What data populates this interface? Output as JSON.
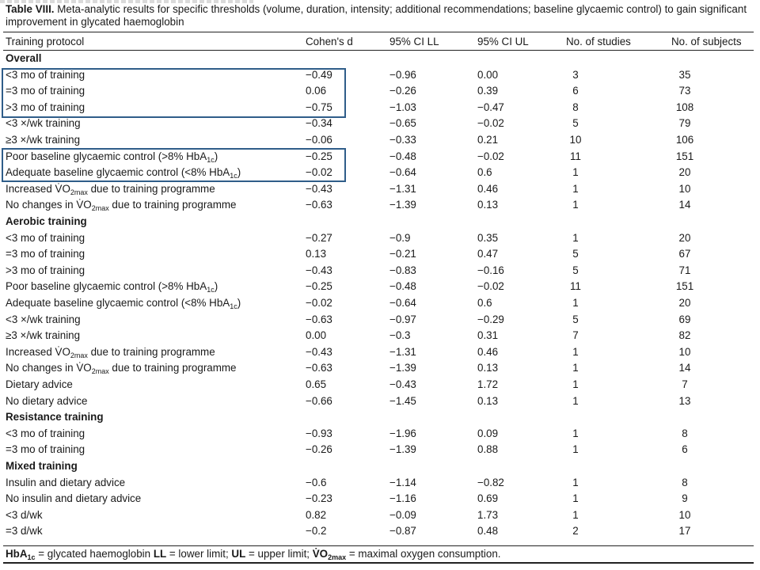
{
  "caption": {
    "label": "Table  VIII.",
    "text": " Meta-analytic results for specific thresholds (volume, duration, intensity; additional recommendations; baseline glycaemic control) to gain significant improvement in glycated haemoglobin"
  },
  "header": {
    "protocol": "Training protocol",
    "cohens_d": "Cohen's d",
    "ci_ll": "95% CI LL",
    "ci_ul": "95% CI UL",
    "n_studies": "No. of studies",
    "n_subjects": "No. of subjects"
  },
  "rows": [
    {
      "section": "Overall"
    },
    {
      "label": "<3 mo of training",
      "d": "−0.49",
      "ll": "−0.96",
      "ul": "0.00",
      "ns": "3",
      "nj": "35"
    },
    {
      "label": "=3 mo of training",
      "d": "0.06",
      "ll": "−0.26",
      "ul": "0.39",
      "ns": "6",
      "nj": "73"
    },
    {
      "label": ">3 mo of training",
      "d": "−0.75",
      "ll": "−1.03",
      "ul": "−0.47",
      "ns": "8",
      "nj": "108"
    },
    {
      "label": "<3 ×/wk training",
      "d": "−0.34",
      "ll": "−0.65",
      "ul": "−0.02",
      "ns": "5",
      "nj": "79"
    },
    {
      "label": "≥3 ×/wk training",
      "d": "−0.06",
      "ll": "−0.33",
      "ul": "0.21",
      "ns": "10",
      "nj": "106"
    },
    {
      "label_pre": "Poor baseline glycaemic control (>8% HbA",
      "label_sub": "1c",
      "label_post": ")",
      "d": "−0.25",
      "ll": "−0.48",
      "ul": "−0.02",
      "ns": "11",
      "nj": "151"
    },
    {
      "label_pre": "Adequate baseline glycaemic control (<8% HbA",
      "label_sub": "1c",
      "label_post": ")",
      "d": "−0.02",
      "ll": "−0.64",
      "ul": "0.6",
      "ns": "1",
      "nj": "20"
    },
    {
      "label_pre": "Increased V̇O",
      "label_sub": "2max",
      "label_post": " due to training programme",
      "d": "−0.43",
      "ll": "−1.31",
      "ul": "0.46",
      "ns": "1",
      "nj": "10"
    },
    {
      "label_pre": "No changes in V̇O",
      "label_sub": "2max",
      "label_post": " due to training programme",
      "d": "−0.63",
      "ll": "−1.39",
      "ul": "0.13",
      "ns": "1",
      "nj": "14"
    },
    {
      "section": "Aerobic training"
    },
    {
      "label": "<3 mo of training",
      "d": "−0.27",
      "ll": "−0.9",
      "ul": "0.35",
      "ns": "1",
      "nj": "20"
    },
    {
      "label": "=3 mo of training",
      "d": "0.13",
      "ll": "−0.21",
      "ul": "0.47",
      "ns": "5",
      "nj": "67"
    },
    {
      "label": ">3 mo of training",
      "d": "−0.43",
      "ll": "−0.83",
      "ul": "−0.16",
      "ns": "5",
      "nj": "71"
    },
    {
      "label_pre": "Poor baseline glycaemic control (>8% HbA",
      "label_sub": "1c",
      "label_post": ")",
      "d": "−0.25",
      "ll": "−0.48",
      "ul": "−0.02",
      "ns": "11",
      "nj": "151"
    },
    {
      "label_pre": "Adequate baseline glycaemic control (<8% HbA",
      "label_sub": "1c",
      "label_post": ")",
      "d": "−0.02",
      "ll": "−0.64",
      "ul": "0.6",
      "ns": "1",
      "nj": "20"
    },
    {
      "label": "<3 ×/wk training",
      "d": "−0.63",
      "ll": "−0.97",
      "ul": "−0.29",
      "ns": "5",
      "nj": "69"
    },
    {
      "label": "≥3 ×/wk training",
      "d": "0.00",
      "ll": "−0.3",
      "ul": "0.31",
      "ns": "7",
      "nj": "82"
    },
    {
      "label_pre": "Increased V̇O",
      "label_sub": "2max",
      "label_post": " due to training programme",
      "d": "−0.43",
      "ll": "−1.31",
      "ul": "0.46",
      "ns": "1",
      "nj": "10"
    },
    {
      "label_pre": "No changes in V̇O",
      "label_sub": "2max",
      "label_post": " due to training programme",
      "d": "−0.63",
      "ll": "−1.39",
      "ul": "0.13",
      "ns": "1",
      "nj": "14"
    },
    {
      "label": "Dietary advice",
      "d": "0.65",
      "ll": "−0.43",
      "ul": "1.72",
      "ns": "1",
      "nj": "7"
    },
    {
      "label": "No dietary advice",
      "d": "−0.66",
      "ll": "−1.45",
      "ul": "0.13",
      "ns": "1",
      "nj": "13"
    },
    {
      "section": "Resistance training"
    },
    {
      "label": "<3 mo of training",
      "d": "−0.93",
      "ll": "−1.96",
      "ul": "0.09",
      "ns": "1",
      "nj": "8"
    },
    {
      "label": "=3 mo of training",
      "d": "−0.26",
      "ll": "−1.39",
      "ul": "0.88",
      "ns": "1",
      "nj": "6"
    },
    {
      "section": "Mixed training"
    },
    {
      "label": "Insulin and dietary advice",
      "d": "−0.6",
      "ll": "−1.14",
      "ul": "−0.82",
      "ns": "1",
      "nj": "8"
    },
    {
      "label": "No insulin and dietary advice",
      "d": "−0.23",
      "ll": "−1.16",
      "ul": "0.69",
      "ns": "1",
      "nj": "9"
    },
    {
      "label": "<3 d/wk",
      "d": "0.82",
      "ll": "−0.09",
      "ul": "1.73",
      "ns": "1",
      "nj": "10"
    },
    {
      "label": "=3 d/wk",
      "d": "−0.2",
      "ll": "−0.87",
      "ul": "0.48",
      "ns": "2",
      "nj": "17"
    }
  ],
  "footnote": {
    "hba_pre": "HbA",
    "hba_sub": "1c",
    "hba_def": " = glycated haemoglobin ",
    "ll_abbr": "LL",
    "ll_def": " = lower limit; ",
    "ul_abbr": "UL",
    "ul_def": " = upper limit; ",
    "vo_pre": "V̇O",
    "vo_sub": "2max",
    "vo_def": " = maximal oxygen consumption."
  },
  "colors": {
    "highlight_box": "#2f5d89",
    "text": "#1a1a1a"
  }
}
